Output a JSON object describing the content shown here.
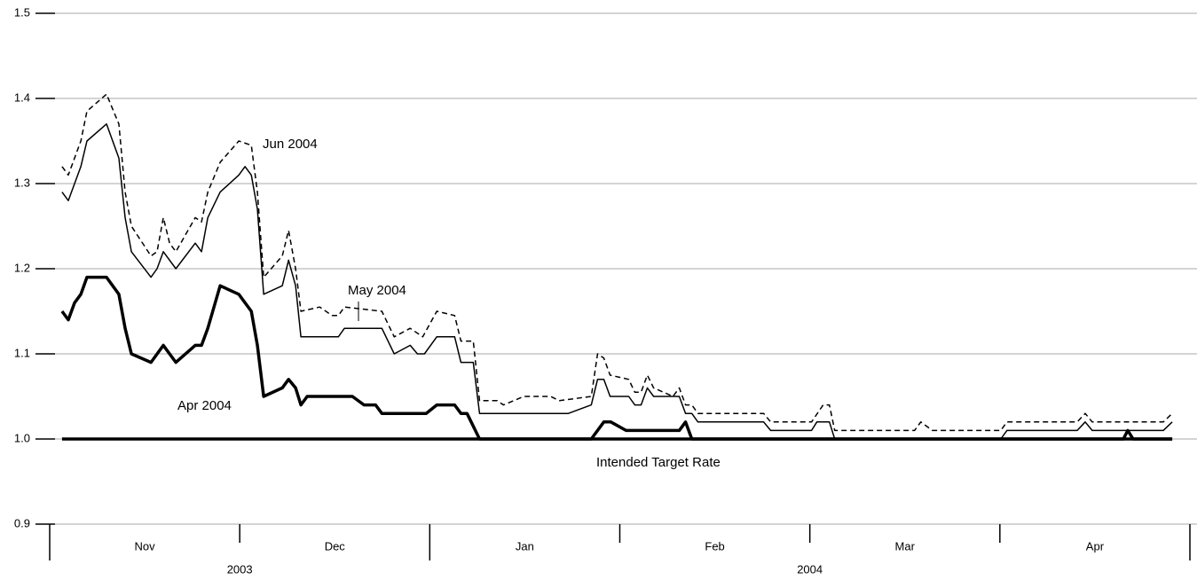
{
  "chart_data": {
    "type": "line",
    "ylim": [
      0.9,
      1.5
    ],
    "yticks": [
      0.9,
      {
        "value": 1,
        "label": "1.0"
      },
      1.1,
      1.2,
      1.3,
      1.4,
      1.5
    ],
    "xlim": [
      0,
      6
    ],
    "xticks": [
      0,
      1,
      2,
      3,
      4,
      5,
      6
    ],
    "categories": [
      "Nov",
      "Dec",
      "Jan",
      "Feb",
      "Mar",
      "Apr"
    ],
    "years": [
      {
        "label": "2003",
        "from": 0,
        "to": 2
      },
      {
        "label": "2004",
        "from": 2,
        "to": 6
      }
    ],
    "grid": true,
    "series": [
      {
        "name": "Intended Target Rate",
        "color": "#000000",
        "line_width": 3.5,
        "style": "solid",
        "x": [
          0.065,
          5.907
        ],
        "values": [
          1.0,
          1.0
        ]
      },
      {
        "name": "Apr 2004",
        "color": "#000000",
        "line_width": 3.5,
        "style": "solid",
        "x": [
          0.065,
          0.098,
          0.131,
          0.164,
          0.196,
          0.299,
          0.364,
          0.397,
          0.43,
          0.533,
          0.598,
          0.664,
          0.766,
          0.799,
          0.832,
          0.897,
          0.995,
          1.061,
          1.093,
          1.126,
          1.224,
          1.257,
          1.294,
          1.322,
          1.355,
          1.593,
          1.654,
          1.715,
          1.748,
          1.981,
          2.037,
          2.131,
          2.164,
          2.196,
          2.262,
          2.85,
          2.916,
          2.953,
          3.033,
          3.313,
          3.346,
          3.379,
          5.65,
          5.673,
          5.701,
          5.907
        ],
        "values": [
          1.15,
          1.14,
          1.16,
          1.17,
          1.19,
          1.19,
          1.17,
          1.13,
          1.1,
          1.09,
          1.11,
          1.09,
          1.11,
          1.11,
          1.13,
          1.18,
          1.17,
          1.15,
          1.11,
          1.05,
          1.06,
          1.07,
          1.06,
          1.04,
          1.05,
          1.05,
          1.04,
          1.04,
          1.03,
          1.03,
          1.04,
          1.04,
          1.03,
          1.03,
          1.0,
          1.0,
          1.02,
          1.02,
          1.01,
          1.01,
          1.02,
          1.0,
          1.0,
          1.01,
          1.0,
          1.0
        ]
      },
      {
        "name": "May 2004",
        "color": "#000000",
        "line_width": 1.5,
        "style": "solid",
        "x": [
          0.065,
          0.098,
          0.164,
          0.196,
          0.299,
          0.364,
          0.397,
          0.43,
          0.533,
          0.565,
          0.598,
          0.664,
          0.766,
          0.799,
          0.832,
          0.897,
          0.995,
          1.028,
          1.061,
          1.093,
          1.126,
          1.224,
          1.257,
          1.294,
          1.322,
          1.519,
          1.551,
          1.748,
          1.813,
          1.897,
          1.935,
          1.972,
          2.037,
          2.131,
          2.164,
          2.229,
          2.262,
          2.729,
          2.85,
          2.883,
          2.916,
          2.949,
          3.047,
          3.079,
          3.112,
          3.145,
          3.178,
          3.313,
          3.346,
          3.379,
          3.411,
          3.757,
          3.794,
          4.009,
          4.037,
          4.103,
          4.131,
          5.005,
          5.037,
          5.407,
          5.449,
          5.486,
          5.86,
          5.907
        ],
        "values": [
          1.29,
          1.28,
          1.32,
          1.35,
          1.37,
          1.33,
          1.26,
          1.22,
          1.19,
          1.2,
          1.22,
          1.2,
          1.23,
          1.22,
          1.26,
          1.29,
          1.31,
          1.32,
          1.31,
          1.27,
          1.17,
          1.18,
          1.21,
          1.18,
          1.12,
          1.12,
          1.13,
          1.13,
          1.1,
          1.11,
          1.1,
          1.1,
          1.12,
          1.12,
          1.09,
          1.09,
          1.03,
          1.03,
          1.04,
          1.07,
          1.07,
          1.05,
          1.05,
          1.04,
          1.04,
          1.06,
          1.05,
          1.05,
          1.03,
          1.03,
          1.02,
          1.02,
          1.01,
          1.01,
          1.02,
          1.02,
          1.0,
          1.0,
          1.01,
          1.01,
          1.02,
          1.01,
          1.01,
          1.02
        ]
      },
      {
        "name": "Jun 2004",
        "color": "#000000",
        "line_width": 1.5,
        "style": "dashed",
        "x": [
          0.065,
          0.098,
          0.164,
          0.196,
          0.299,
          0.364,
          0.397,
          0.43,
          0.533,
          0.565,
          0.598,
          0.631,
          0.664,
          0.766,
          0.799,
          0.832,
          0.897,
          0.995,
          1.061,
          1.093,
          1.126,
          1.224,
          1.257,
          1.294,
          1.322,
          1.421,
          1.486,
          1.519,
          1.551,
          1.748,
          1.813,
          1.897,
          1.963,
          2.037,
          2.131,
          2.164,
          2.229,
          2.262,
          2.355,
          2.388,
          2.495,
          2.636,
          2.682,
          2.85,
          2.883,
          2.916,
          2.949,
          3.047,
          3.079,
          3.112,
          3.145,
          3.178,
          3.28,
          3.313,
          3.346,
          3.379,
          3.411,
          3.757,
          3.794,
          4.009,
          4.07,
          4.103,
          4.131,
          4.551,
          4.584,
          4.645,
          5.005,
          5.037,
          5.407,
          5.449,
          5.486,
          5.86,
          5.907
        ],
        "values": [
          1.32,
          1.31,
          1.35,
          1.385,
          1.405,
          1.37,
          1.29,
          1.25,
          1.215,
          1.22,
          1.26,
          1.23,
          1.22,
          1.26,
          1.255,
          1.29,
          1.325,
          1.35,
          1.345,
          1.29,
          1.19,
          1.215,
          1.245,
          1.2,
          1.15,
          1.155,
          1.145,
          1.145,
          1.155,
          1.15,
          1.12,
          1.13,
          1.12,
          1.15,
          1.145,
          1.115,
          1.115,
          1.045,
          1.045,
          1.04,
          1.05,
          1.05,
          1.045,
          1.05,
          1.1,
          1.095,
          1.075,
          1.07,
          1.055,
          1.055,
          1.075,
          1.06,
          1.05,
          1.06,
          1.04,
          1.04,
          1.03,
          1.03,
          1.02,
          1.02,
          1.04,
          1.04,
          1.01,
          1.01,
          1.02,
          1.01,
          1.01,
          1.02,
          1.02,
          1.03,
          1.02,
          1.02,
          1.03
        ]
      }
    ]
  }
}
